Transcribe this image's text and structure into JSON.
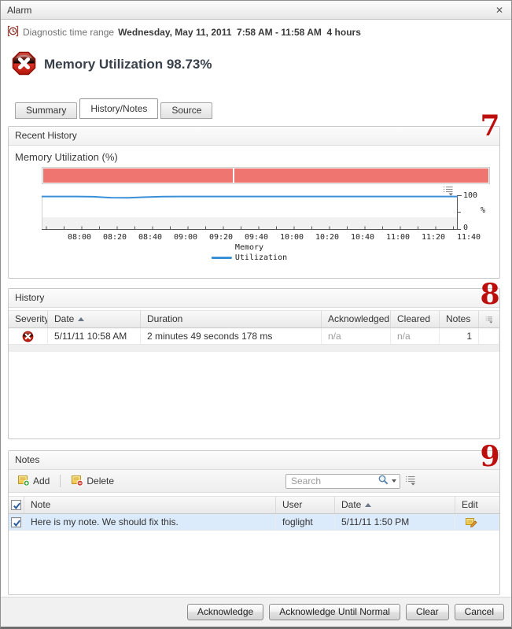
{
  "window": {
    "title": "Alarm",
    "close_icon": "✕"
  },
  "diagnostic": {
    "icon": "clock-in-brackets",
    "label": "Diagnostic time range",
    "value": "Wednesday, May 11, 2011  7:58 AM - 11:58 AM  4 hours"
  },
  "alarm": {
    "severity": "fatal",
    "title": "Memory Utilization 98.73%"
  },
  "tabs": [
    {
      "label": "Summary",
      "active": false
    },
    {
      "label": "History/Notes",
      "active": true
    },
    {
      "label": "Source",
      "active": false
    }
  ],
  "annotations": {
    "recent_history": "7",
    "history": "8",
    "notes": "9",
    "color": "#bd0e0e"
  },
  "recent_history": {
    "panel_title": "Recent History"
  },
  "chart_data": {
    "type": "line",
    "title": "Memory Utilization (%)",
    "x_labels": [
      "08:00",
      "08:20",
      "08:40",
      "09:00",
      "09:20",
      "09:40",
      "10:00",
      "10:20",
      "10:40",
      "11:00",
      "11:20",
      "11:40"
    ],
    "x_minutes_step": 10,
    "series": [
      {
        "name": "Memory Utilization",
        "color": "#3a8fd9",
        "values": [
          98.7,
          98.7,
          98.6,
          98.0,
          95.2,
          94.6,
          96.8,
          98.4,
          98.7,
          98.7,
          98.7,
          98.7,
          98.7,
          98.7,
          98.7,
          98.7,
          98.7,
          98.7,
          98.7,
          98.7,
          98.7,
          98.7,
          98.7,
          98.7,
          98.7
        ]
      }
    ],
    "ylim": [
      0,
      100
    ],
    "y_axis": {
      "max_label": "100",
      "min_label": "0",
      "unit": "%"
    },
    "legend": {
      "group": "Memory",
      "metric": "Utilization",
      "position": "bottom-center"
    },
    "severity_band": {
      "color": "#ef7570",
      "segments_pct": [
        42.5,
        57.1
      ]
    },
    "grid": false
  },
  "history": {
    "panel_title": "History",
    "columns": [
      "Severity",
      "Date",
      "Duration",
      "Acknowledged",
      "Cleared",
      "Notes"
    ],
    "sort": {
      "column": "Date",
      "direction": "asc"
    },
    "rows": [
      {
        "severity": "fatal",
        "date": "5/11/11 10:58 AM",
        "duration": "2 minutes 49 seconds 178 ms",
        "acknowledged": "n/a",
        "cleared": "n/a",
        "notes": "1"
      }
    ]
  },
  "notes": {
    "panel_title": "Notes",
    "toolbar": {
      "add_label": "Add",
      "delete_label": "Delete"
    },
    "search": {
      "placeholder": "Search"
    },
    "columns": [
      "Note",
      "User",
      "Date",
      "Edit"
    ],
    "sort": {
      "column": "Date",
      "direction": "asc"
    },
    "rows": [
      {
        "checked": true,
        "note": "Here is my note. We should fix this.",
        "user": "foglight",
        "date": "5/11/11 1:50 PM"
      }
    ]
  },
  "footer": {
    "buttons": [
      "Acknowledge",
      "Acknowledge Until Normal",
      "Clear",
      "Cancel"
    ]
  },
  "colors": {
    "severity_band": "#ef7570",
    "chart_line": "#3a8fd9",
    "selected_row": "#dcebfb",
    "annotation": "#bd0e0e"
  }
}
